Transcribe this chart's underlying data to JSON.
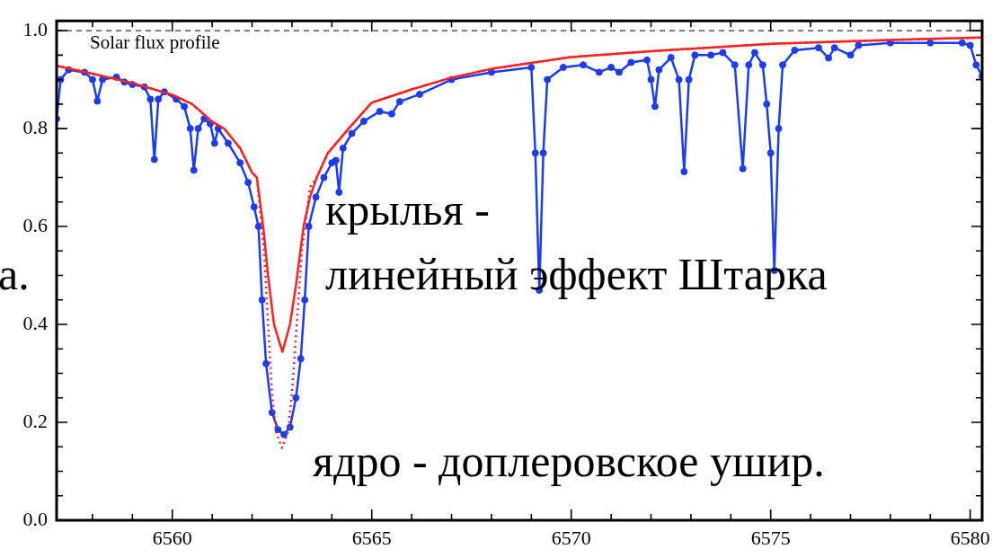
{
  "chart_data": {
    "type": "line",
    "xlim": [
      6557.1,
      6580.3
    ],
    "ylim": [
      0,
      1.02
    ],
    "xticks": [
      {
        "value": 6558,
        "label": null
      },
      {
        "value": 6559,
        "label": null
      },
      6560,
      {
        "value": 6561,
        "label": null
      },
      {
        "value": 6562,
        "label": null
      },
      {
        "value": 6563,
        "label": null
      },
      {
        "value": 6564,
        "label": null
      },
      6565,
      {
        "value": 6566,
        "label": null
      },
      {
        "value": 6567,
        "label": null
      },
      {
        "value": 6568,
        "label": null
      },
      {
        "value": 6569,
        "label": null
      },
      6570,
      {
        "value": 6571,
        "label": null
      },
      {
        "value": 6572,
        "label": null
      },
      {
        "value": 6573,
        "label": null
      },
      {
        "value": 6574,
        "label": null
      },
      6575,
      {
        "value": 6576,
        "label": null
      },
      {
        "value": 6577,
        "label": null
      },
      {
        "value": 6578,
        "label": null
      },
      {
        "value": 6579,
        "label": null
      },
      6580
    ],
    "yticks": [
      {
        "value": 0,
        "label": "0.0"
      },
      {
        "value": 0.05,
        "label": null
      },
      {
        "value": 0.1,
        "label": null
      },
      {
        "value": 0.15,
        "label": null
      },
      0.2,
      {
        "value": 0.25,
        "label": null
      },
      {
        "value": 0.3,
        "label": null
      },
      {
        "value": 0.35,
        "label": null
      },
      0.4,
      {
        "value": 0.45,
        "label": null
      },
      {
        "value": 0.5,
        "label": null
      },
      {
        "value": 0.55,
        "label": null
      },
      0.6,
      {
        "value": 0.65,
        "label": null
      },
      {
        "value": 0.7,
        "label": null
      },
      {
        "value": 0.75,
        "label": null
      },
      0.8,
      {
        "value": 0.85,
        "label": null
      },
      {
        "value": 0.9,
        "label": null
      },
      {
        "value": 0.95,
        "label": null
      },
      {
        "value": 1,
        "label": "1.0"
      }
    ],
    "grid": false,
    "legend": false,
    "ref_lines": [
      {
        "axis": "y",
        "value": 1,
        "color": "#000000",
        "line_style": "dashed"
      }
    ],
    "annotations": [
      "Solar flux profile",
      "крылья -",
      "линейный эффект Штарка",
      "ядро - доплеровское ушир.",
      "а."
    ],
    "series": [
      {
        "color": "#1a3cf5",
        "marker": "circle",
        "line_style": "solid",
        "x": [
          6557.1,
          6557.2,
          6557.4,
          6557.8,
          6558.0,
          6558.12,
          6558.25,
          6558.6,
          6558.8,
          6559.0,
          6559.3,
          6559.45,
          6559.55,
          6559.65,
          6559.8,
          6560.1,
          6560.3,
          6560.45,
          6560.54,
          6560.65,
          6560.8,
          6560.95,
          6561.06,
          6561.15,
          6561.4,
          6561.7,
          6561.9,
          6562.05,
          6562.16,
          6562.25,
          6562.35,
          6562.5,
          6562.65,
          6562.8,
          6562.95,
          6563.1,
          6563.22,
          6563.32,
          6563.42,
          6563.6,
          6563.8,
          6564.0,
          6564.1,
          6564.18,
          6564.28,
          6564.5,
          6564.8,
          6565.2,
          6565.5,
          6565.7,
          6566.2,
          6567,
          6568,
          6569.0,
          6569.1,
          6569.2,
          6569.3,
          6569.4,
          6569.8,
          6570.3,
          6570.7,
          6571.0,
          6571.2,
          6571.5,
          6571.9,
          6572.0,
          6572.1,
          6572.2,
          6572.5,
          6572.7,
          6572.83,
          6572.95,
          6573.1,
          6573.5,
          6573.8,
          6574.1,
          6574.3,
          6574.45,
          6574.6,
          6574.8,
          6574.9,
          6575.0,
          6575.09,
          6575.2,
          6575.3,
          6575.6,
          6576.2,
          6576.45,
          6576.6,
          6577.0,
          6577.2,
          6578,
          6579,
          6579.8,
          6580.0,
          6580.15,
          6580.3
        ],
        "values": [
          0.82,
          0.9,
          0.92,
          0.915,
          0.9,
          0.856,
          0.9,
          0.905,
          0.895,
          0.89,
          0.885,
          0.86,
          0.737,
          0.86,
          0.875,
          0.86,
          0.845,
          0.8,
          0.715,
          0.8,
          0.82,
          0.81,
          0.77,
          0.8,
          0.77,
          0.73,
          0.69,
          0.64,
          0.6,
          0.45,
          0.32,
          0.22,
          0.185,
          0.175,
          0.19,
          0.25,
          0.33,
          0.45,
          0.6,
          0.66,
          0.7,
          0.73,
          0.735,
          0.67,
          0.76,
          0.79,
          0.815,
          0.835,
          0.83,
          0.855,
          0.87,
          0.9,
          0.915,
          0.925,
          0.75,
          0.47,
          0.75,
          0.9,
          0.925,
          0.93,
          0.915,
          0.925,
          0.915,
          0.935,
          0.94,
          0.9,
          0.845,
          0.92,
          0.945,
          0.9,
          0.712,
          0.9,
          0.95,
          0.95,
          0.955,
          0.93,
          0.718,
          0.93,
          0.955,
          0.93,
          0.85,
          0.75,
          0.51,
          0.8,
          0.93,
          0.96,
          0.965,
          0.944,
          0.965,
          0.95,
          0.97,
          0.975,
          0.975,
          0.975,
          0.97,
          0.93,
          0.907
        ]
      },
      {
        "color": "#ff2020",
        "marker": "none",
        "line_style": "dotted",
        "x": [
          6557.1,
          6558,
          6559,
          6560,
          6560.5,
          6561,
          6561.3,
          6561.7,
          6562.0,
          6562.12,
          6562.3,
          6562.4,
          6562.5,
          6562.6,
          6562.75,
          6562.9,
          6563.0,
          6563.12,
          6563.25,
          6563.45,
          6563.62,
          6563.9,
          6564.42,
          6565,
          6566,
          6567,
          6568,
          6570,
          6572,
          6575,
          6578,
          6580.3
        ],
        "values": [
          0.928,
          0.912,
          0.893,
          0.869,
          0.85,
          0.814,
          0.8,
          0.76,
          0.71,
          0.7,
          0.55,
          0.4,
          0.26,
          0.18,
          0.148,
          0.18,
          0.26,
          0.4,
          0.55,
          0.68,
          0.7,
          0.75,
          0.8,
          0.853,
          0.88,
          0.904,
          0.922,
          0.946,
          0.958,
          0.973,
          0.981,
          0.986
        ]
      },
      {
        "color": "#ff2020",
        "marker": "none",
        "line_style": "solid",
        "x": [
          6557.1,
          6558,
          6559,
          6560,
          6560.5,
          6561,
          6561.3,
          6561.7,
          6562.0,
          6562.12,
          6562.28,
          6562.4,
          6562.55,
          6562.76,
          6562.95,
          6563.1,
          6563.29,
          6563.45,
          6563.62,
          6563.9,
          6564.42,
          6565,
          6566,
          6567,
          6568,
          6570,
          6572,
          6575,
          6578,
          6580.3
        ],
        "values": [
          0.928,
          0.912,
          0.893,
          0.869,
          0.85,
          0.814,
          0.8,
          0.76,
          0.71,
          0.7,
          0.6,
          0.5,
          0.4,
          0.344,
          0.4,
          0.48,
          0.6,
          0.66,
          0.7,
          0.75,
          0.8,
          0.853,
          0.88,
          0.904,
          0.922,
          0.946,
          0.958,
          0.973,
          0.981,
          0.986
        ]
      }
    ]
  }
}
